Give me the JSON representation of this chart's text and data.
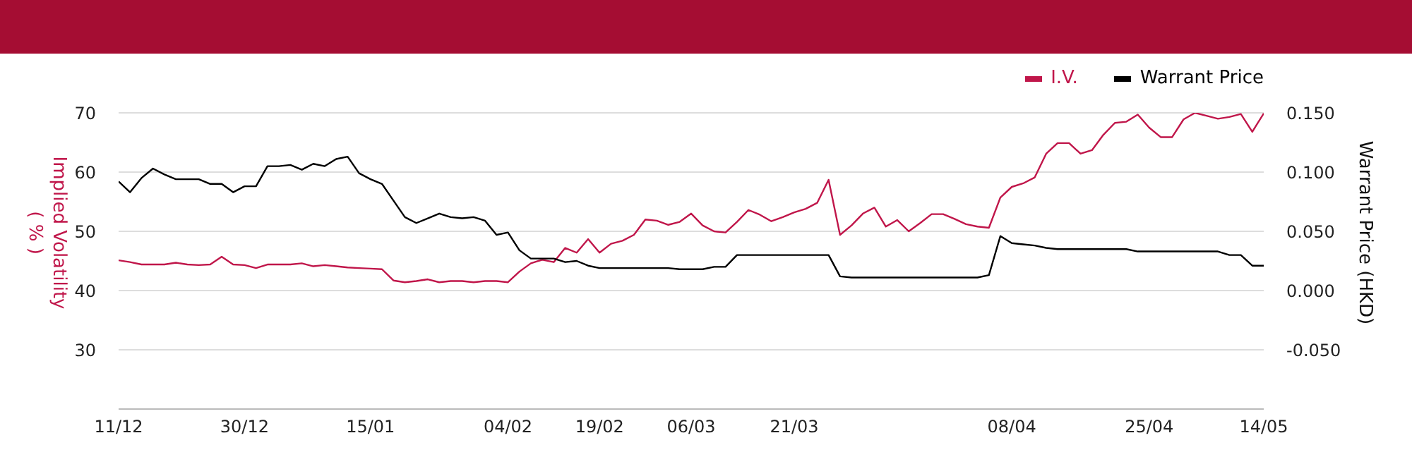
{
  "chart_data": {
    "type": "line",
    "ylabel": "Implied Volatility\n( % )",
    "y2label": "Warrant Price (HKD)",
    "categories": [
      "11/12",
      null,
      null,
      null,
      null,
      null,
      null,
      null,
      null,
      null,
      null,
      "30/12",
      null,
      null,
      null,
      null,
      null,
      null,
      null,
      null,
      null,
      null,
      "15/01",
      null,
      null,
      null,
      null,
      null,
      null,
      null,
      null,
      null,
      null,
      null,
      "04/02",
      null,
      null,
      null,
      null,
      null,
      null,
      null,
      "19/02",
      null,
      null,
      null,
      null,
      null,
      null,
      null,
      "06/03",
      null,
      null,
      null,
      null,
      null,
      null,
      null,
      null,
      "21/03",
      null,
      null,
      null,
      null,
      null,
      null,
      null,
      null,
      null,
      null,
      null,
      null,
      null,
      null,
      null,
      null,
      null,
      null,
      "08/04",
      null,
      null,
      null,
      null,
      null,
      null,
      null,
      null,
      null,
      null,
      null,
      "25/04",
      null,
      null,
      null,
      null,
      null,
      null,
      null,
      null,
      null,
      "14/05"
    ],
    "series": [
      {
        "name": "I.V.",
        "color": "#c0164a",
        "values": [
          45.1,
          44.8,
          44.4,
          44.4,
          44.4,
          44.7,
          44.4,
          44.3,
          44.4,
          45.7,
          44.4,
          44.3,
          43.8,
          44.4,
          44.4,
          44.4,
          44.6,
          44.1,
          44.3,
          44.1,
          43.9,
          43.8,
          43.7,
          43.6,
          41.7,
          41.4,
          41.6,
          41.9,
          41.4,
          41.6,
          41.6,
          41.4,
          41.6,
          41.6,
          41.4,
          43.2,
          44.6,
          45.2,
          44.8,
          47.2,
          46.4,
          48.7,
          46.4,
          47.9,
          48.4,
          49.4,
          52.0,
          51.8,
          51.1,
          51.6,
          53.0,
          51.0,
          50.0,
          49.8,
          51.6,
          53.6,
          52.8,
          51.7,
          52.4,
          53.2,
          53.8,
          54.8,
          58.7,
          49.4,
          51.0,
          53.0,
          54.0,
          50.8,
          51.9,
          50.0,
          51.4,
          52.9,
          52.9,
          52.1,
          51.2,
          50.8,
          50.6,
          55.7,
          57.5,
          58.1,
          59.1,
          63.1,
          64.9,
          64.9,
          63.1,
          63.7,
          66.3,
          68.3,
          68.5,
          69.7,
          67.5,
          65.9,
          65.9,
          68.9,
          70.0,
          69.5,
          69.0,
          69.3,
          69.8,
          66.8,
          69.9
        ]
      },
      {
        "name": "Warrant Price",
        "color": "#000000",
        "axis": "y2",
        "values": [
          0.092,
          0.083,
          0.095,
          0.103,
          0.098,
          0.094,
          0.094,
          0.094,
          0.09,
          0.09,
          0.083,
          0.088,
          0.088,
          0.105,
          0.105,
          0.106,
          0.102,
          0.107,
          0.105,
          0.111,
          0.113,
          0.099,
          0.094,
          0.09,
          0.076,
          0.062,
          0.057,
          0.061,
          0.065,
          0.062,
          0.061,
          0.062,
          0.059,
          0.047,
          0.049,
          0.034,
          0.027,
          0.027,
          0.027,
          0.024,
          0.025,
          0.021,
          0.019,
          0.019,
          0.019,
          0.019,
          0.019,
          0.019,
          0.019,
          0.018,
          0.018,
          0.018,
          0.02,
          0.02,
          0.03,
          0.03,
          0.03,
          0.03,
          0.03,
          0.03,
          0.03,
          0.03,
          0.03,
          0.012,
          0.011,
          0.011,
          0.011,
          0.011,
          0.011,
          0.011,
          0.011,
          0.011,
          0.011,
          0.011,
          0.011,
          0.011,
          0.013,
          0.046,
          0.04,
          0.039,
          0.038,
          0.036,
          0.035,
          0.035,
          0.035,
          0.035,
          0.035,
          0.035,
          0.035,
          0.033,
          0.033,
          0.033,
          0.033,
          0.033,
          0.033,
          0.033,
          0.033,
          0.03,
          0.03,
          0.021,
          0.021
        ]
      }
    ],
    "ylim": [
      20,
      70
    ],
    "yticks": [
      30,
      40,
      50,
      60,
      70
    ],
    "y2lim": [
      -0.1,
      0.15
    ],
    "y2ticks": [
      {
        "value": -0.05,
        "label": "-0.050"
      },
      {
        "value": 0,
        "label": "0.000"
      },
      {
        "value": 0.05,
        "label": "0.050"
      },
      {
        "value": 0.1,
        "label": "0.100"
      },
      {
        "value": 0.15,
        "label": "0.150"
      }
    ],
    "grid": "y",
    "legend": "top right",
    "marker": "none",
    "line_style": "solid"
  }
}
